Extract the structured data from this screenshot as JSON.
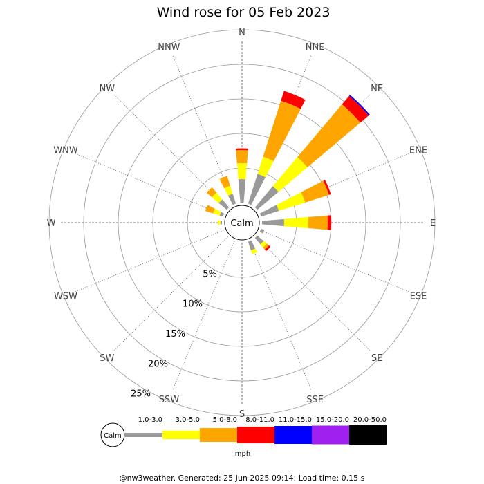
{
  "chart_data": {
    "type": "wind-rose",
    "title": "Wind rose for 05 Feb 2023",
    "directions": [
      "N",
      "NNE",
      "NE",
      "ENE",
      "E",
      "ESE",
      "SE",
      "SSE",
      "S",
      "SSW",
      "SW",
      "WSW",
      "W",
      "WNW",
      "NW",
      "NNW"
    ],
    "radial_ticks": [
      "5%",
      "10%",
      "15%",
      "20%",
      "25%"
    ],
    "radial_values": [
      5,
      10,
      15,
      20,
      25
    ],
    "calm_label": "Calm",
    "speed_unit": "mph",
    "bins": [
      {
        "label": "1.0-3.0",
        "color": "#999999"
      },
      {
        "label": "3.0-5.0",
        "color": "#ffff00"
      },
      {
        "label": "5.0-8.0",
        "color": "#ffa500"
      },
      {
        "label": "8.0-11.0",
        "color": "#ff0000"
      },
      {
        "label": "11.0-15.0",
        "color": "#0000ff"
      },
      {
        "label": "15.0-20.0",
        "color": "#a020f0"
      },
      {
        "label": "20.0-50.0",
        "color": "#000000"
      }
    ],
    "series": [
      {
        "direction": "N",
        "values": [
          3.4,
          2.3,
          1.9,
          0.25,
          0,
          0,
          0
        ]
      },
      {
        "direction": "NNE",
        "values": [
          4.5,
          2.6,
          8.5,
          1.5,
          0,
          0,
          0
        ]
      },
      {
        "direction": "NE",
        "values": [
          4.0,
          5.5,
          10.0,
          1.6,
          0.2,
          0,
          0
        ]
      },
      {
        "direction": "ENE",
        "values": [
          2.7,
          4.0,
          3.6,
          0.3,
          0,
          0,
          0
        ]
      },
      {
        "direction": "E",
        "values": [
          3.2,
          3.5,
          2.8,
          0.5,
          0,
          0,
          0
        ]
      },
      {
        "direction": "ESE",
        "values": [
          0.5,
          0,
          0,
          0,
          0,
          0,
          0
        ]
      },
      {
        "direction": "SE",
        "values": [
          1.2,
          0.6,
          0.4,
          0.3,
          0,
          0,
          0
        ]
      },
      {
        "direction": "SSE",
        "values": [
          1.3,
          0.6,
          0,
          0,
          0,
          0,
          0
        ]
      },
      {
        "direction": "S",
        "values": [
          0,
          0,
          0,
          0,
          0,
          0,
          0
        ]
      },
      {
        "direction": "SSW",
        "values": [
          0,
          0,
          0,
          0,
          0,
          0,
          0
        ]
      },
      {
        "direction": "SW",
        "values": [
          0,
          0,
          0,
          0,
          0,
          0,
          0
        ]
      },
      {
        "direction": "WSW",
        "values": [
          0,
          0,
          0,
          0,
          0,
          0,
          0
        ]
      },
      {
        "direction": "W",
        "values": [
          0.2,
          0.4,
          0,
          0,
          0,
          0,
          0
        ]
      },
      {
        "direction": "WNW",
        "values": [
          0.5,
          1.0,
          1.2,
          0,
          0,
          0,
          0
        ]
      },
      {
        "direction": "NW",
        "values": [
          1.5,
          1.3,
          1.0,
          0,
          0,
          0,
          0
        ]
      },
      {
        "direction": "NNW",
        "values": [
          1.5,
          1.2,
          1.5,
          0,
          0,
          0,
          0
        ]
      }
    ]
  },
  "footer": "@nw3weather. Generated: 25 Jun 2025 09:14; Load time: 0.15 s"
}
